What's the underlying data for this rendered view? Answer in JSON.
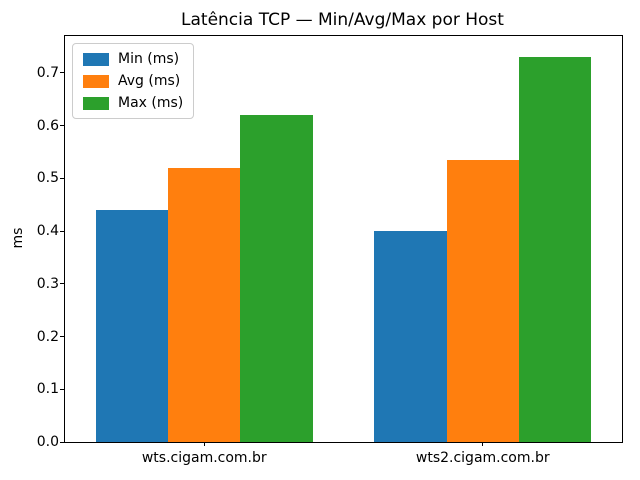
{
  "chart_data": {
    "type": "bar",
    "title": "Latência TCP — Min/Avg/Max por Host",
    "categories": [
      "wts.cigam.com.br",
      "wts2.cigam.com.br"
    ],
    "series": [
      {
        "name": "Min (ms)",
        "color": "#1f77b4",
        "values": [
          0.44,
          0.4
        ]
      },
      {
        "name": "Avg (ms)",
        "color": "#ff7f0e",
        "values": [
          0.52,
          0.535
        ]
      },
      {
        "name": "Max (ms)",
        "color": "#2ca02c",
        "values": [
          0.62,
          0.73
        ]
      }
    ],
    "xlabel": "",
    "ylabel": "ms",
    "ylim": [
      0,
      0.77
    ],
    "yticks": [
      0.0,
      0.1,
      0.2,
      0.3,
      0.4,
      0.5,
      0.6,
      0.7
    ],
    "ytick_labels": [
      "0.0",
      "0.1",
      "0.2",
      "0.3",
      "0.4",
      "0.5",
      "0.6",
      "0.7"
    ],
    "legend_position": "upper left",
    "grid": false
  }
}
